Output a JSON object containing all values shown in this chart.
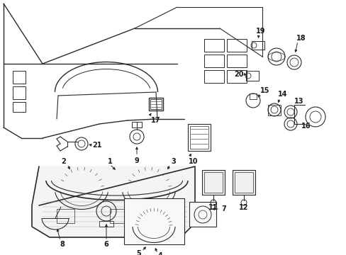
{
  "background_color": "#ffffff",
  "line_color": "#2a2a2a",
  "text_color": "#1a1a1a",
  "fig_width": 4.89,
  "fig_height": 3.6,
  "dpi": 100
}
